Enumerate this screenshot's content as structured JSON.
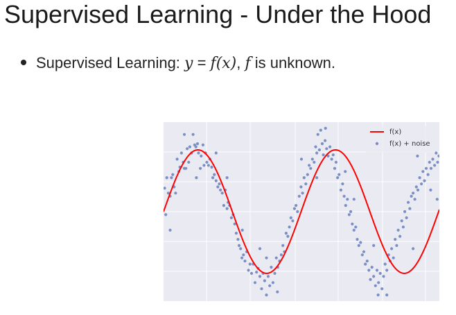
{
  "slide": {
    "title": "Supervised Learning - Under the Hood",
    "bullet": {
      "lead": "Supervised Learning: ",
      "eq_y": "y",
      "eq_mid": " = ",
      "eq_fx": "f(x)",
      "eq_comma": ", ",
      "eq_f": "f",
      "tail": " is unknown."
    }
  },
  "chart_data": {
    "type": "line",
    "function": "sin",
    "xlim": [
      0,
      12.6
    ],
    "ylim": [
      -1.45,
      1.45
    ],
    "grid": true,
    "background": "#eaeaf2",
    "legend": {
      "placement": "top-right",
      "entries": [
        {
          "label": "f(x)",
          "kind": "line",
          "color": "#ff0000"
        },
        {
          "label": "f(x) + noise",
          "kind": "scatter",
          "color": "#7a8fc4"
        }
      ]
    },
    "series": [
      {
        "values_note": "",
        "color": "#ff0000"
      }
    ],
    "scatter_points": [
      [
        0.05,
        0.38
      ],
      [
        0.1,
        -0.05
      ],
      [
        0.15,
        0.55
      ],
      [
        0.22,
        0.3
      ],
      [
        0.3,
        0.25
      ],
      [
        0.36,
        0.55
      ],
      [
        0.42,
        0.6
      ],
      [
        0.48,
        0.4
      ],
      [
        0.55,
        0.3
      ],
      [
        0.62,
        0.85
      ],
      [
        0.7,
        0.65
      ],
      [
        0.75,
        0.72
      ],
      [
        0.82,
        0.95
      ],
      [
        0.9,
        0.8
      ],
      [
        0.95,
        0.7
      ],
      [
        1.02,
        0.7
      ],
      [
        1.08,
        1.02
      ],
      [
        1.15,
        0.8
      ],
      [
        1.2,
        1.05
      ],
      [
        1.28,
        0.95
      ],
      [
        1.35,
        1.25
      ],
      [
        1.42,
        1.08
      ],
      [
        1.48,
        1.05
      ],
      [
        1.55,
        1.1
      ],
      [
        1.6,
        0.95
      ],
      [
        1.68,
        0.7
      ],
      [
        1.72,
        0.9
      ],
      [
        1.8,
        1.08
      ],
      [
        1.85,
        0.75
      ],
      [
        1.92,
        0.95
      ],
      [
        1.98,
        0.8
      ],
      [
        2.05,
        0.75
      ],
      [
        2.12,
        0.85
      ],
      [
        2.2,
        0.72
      ],
      [
        2.25,
        0.55
      ],
      [
        2.32,
        0.6
      ],
      [
        2.4,
        0.5
      ],
      [
        2.48,
        0.4
      ],
      [
        2.55,
        0.45
      ],
      [
        2.6,
        0.35
      ],
      [
        2.68,
        0.3
      ],
      [
        2.75,
        0.1
      ],
      [
        2.82,
        0.35
      ],
      [
        2.9,
        0.05
      ],
      [
        2.95,
        0.15
      ],
      [
        3.02,
        0.1
      ],
      [
        3.1,
        -0.1
      ],
      [
        3.18,
        -0.05
      ],
      [
        3.25,
        -0.2
      ],
      [
        3.32,
        -0.35
      ],
      [
        3.4,
        -0.45
      ],
      [
        3.45,
        -0.55
      ],
      [
        3.52,
        -0.6
      ],
      [
        3.58,
        -0.75
      ],
      [
        3.65,
        -0.7
      ],
      [
        3.72,
        -0.8
      ],
      [
        3.8,
        -0.65
      ],
      [
        3.88,
        -0.95
      ],
      [
        3.95,
        -0.85
      ],
      [
        4.02,
        -1.0
      ],
      [
        4.1,
        -0.85
      ],
      [
        4.18,
        -1.15
      ],
      [
        4.25,
        -0.98
      ],
      [
        4.32,
        -0.92
      ],
      [
        4.4,
        -1.05
      ],
      [
        4.48,
        -1.25
      ],
      [
        4.55,
        -1.0
      ],
      [
        4.62,
        -1.12
      ],
      [
        4.7,
        -1.35
      ],
      [
        4.78,
        -1.05
      ],
      [
        4.85,
        -1.2
      ],
      [
        4.92,
        -0.9
      ],
      [
        5.0,
        -1.15
      ],
      [
        5.08,
        -1.0
      ],
      [
        5.15,
        -0.75
      ],
      [
        5.22,
        -0.9
      ],
      [
        5.3,
        -0.8
      ],
      [
        5.38,
        -0.7
      ],
      [
        5.45,
        -0.55
      ],
      [
        5.52,
        -0.65
      ],
      [
        5.6,
        -0.35
      ],
      [
        5.68,
        -0.4
      ],
      [
        5.75,
        -0.25
      ],
      [
        5.82,
        -0.1
      ],
      [
        5.9,
        -0.15
      ],
      [
        5.98,
        0.05
      ],
      [
        6.05,
        0.1
      ],
      [
        6.12,
        0.0
      ],
      [
        6.2,
        0.25
      ],
      [
        6.28,
        0.4
      ],
      [
        6.35,
        0.3
      ],
      [
        6.42,
        0.55
      ],
      [
        6.5,
        0.45
      ],
      [
        6.58,
        0.6
      ],
      [
        6.65,
        0.75
      ],
      [
        6.72,
        0.7
      ],
      [
        6.8,
        0.85
      ],
      [
        6.88,
        0.8
      ],
      [
        6.95,
        1.05
      ],
      [
        7.0,
        0.95
      ],
      [
        7.05,
        1.25
      ],
      [
        7.12,
        1.0
      ],
      [
        7.18,
        1.32
      ],
      [
        7.25,
        1.1
      ],
      [
        7.3,
        0.92
      ],
      [
        7.38,
        1.15
      ],
      [
        7.45,
        1.02
      ],
      [
        7.52,
        0.9
      ],
      [
        7.6,
        1.05
      ],
      [
        7.68,
        0.85
      ],
      [
        7.75,
        0.92
      ],
      [
        7.82,
        0.7
      ],
      [
        7.88,
        0.8
      ],
      [
        7.95,
        0.55
      ],
      [
        8.02,
        0.6
      ],
      [
        8.1,
        0.35
      ],
      [
        8.18,
        0.45
      ],
      [
        8.25,
        0.25
      ],
      [
        8.32,
        0.1
      ],
      [
        8.4,
        0.2
      ],
      [
        8.48,
        -0.05
      ],
      [
        8.55,
        0.0
      ],
      [
        8.62,
        -0.2
      ],
      [
        8.7,
        -0.3
      ],
      [
        8.78,
        -0.25
      ],
      [
        8.85,
        -0.45
      ],
      [
        8.92,
        -0.55
      ],
      [
        9.0,
        -0.5
      ],
      [
        9.08,
        -0.7
      ],
      [
        9.15,
        -0.65
      ],
      [
        9.22,
        -0.85
      ],
      [
        9.3,
        -0.8
      ],
      [
        9.38,
        -0.95
      ],
      [
        9.45,
        -1.1
      ],
      [
        9.52,
        -0.9
      ],
      [
        9.6,
        -1.05
      ],
      [
        9.68,
        -1.2
      ],
      [
        9.75,
        -0.95
      ],
      [
        9.82,
        -1.15
      ],
      [
        9.9,
        -1.0
      ],
      [
        9.98,
        -1.25
      ],
      [
        10.05,
        -1.05
      ],
      [
        10.12,
        -0.85
      ],
      [
        10.2,
        -0.95
      ],
      [
        10.28,
        -0.7
      ],
      [
        10.35,
        -0.8
      ],
      [
        10.42,
        -0.6
      ],
      [
        10.5,
        -0.75
      ],
      [
        10.58,
        -0.45
      ],
      [
        10.65,
        -0.55
      ],
      [
        10.72,
        -0.3
      ],
      [
        10.8,
        -0.4
      ],
      [
        10.88,
        -0.15
      ],
      [
        10.95,
        -0.25
      ],
      [
        11.02,
        0.0
      ],
      [
        11.1,
        -0.1
      ],
      [
        11.18,
        0.15
      ],
      [
        11.25,
        0.05
      ],
      [
        11.32,
        0.25
      ],
      [
        11.4,
        0.3
      ],
      [
        11.48,
        0.2
      ],
      [
        11.55,
        0.4
      ],
      [
        11.62,
        0.35
      ],
      [
        11.7,
        0.55
      ],
      [
        11.78,
        0.45
      ],
      [
        11.85,
        0.65
      ],
      [
        11.92,
        0.5
      ],
      [
        12.0,
        0.7
      ],
      [
        12.08,
        0.6
      ],
      [
        12.15,
        0.8
      ],
      [
        12.22,
        0.7
      ],
      [
        12.3,
        0.85
      ],
      [
        12.38,
        0.75
      ],
      [
        12.45,
        0.95
      ],
      [
        12.52,
        0.8
      ],
      [
        12.58,
        0.9
      ],
      [
        0.3,
        -0.3
      ],
      [
        1.5,
        0.55
      ],
      [
        2.9,
        0.55
      ],
      [
        3.6,
        -0.3
      ],
      [
        4.4,
        -0.6
      ],
      [
        5.2,
        -1.3
      ],
      [
        6.3,
        0.85
      ],
      [
        7.4,
        1.35
      ],
      [
        8.3,
        0.65
      ],
      [
        9.6,
        -0.55
      ],
      [
        10.2,
        -1.35
      ],
      [
        11.4,
        -0.6
      ],
      [
        12.2,
        0.35
      ],
      [
        0.95,
        1.25
      ],
      [
        2.4,
        0.95
      ],
      [
        4.7,
        -0.75
      ],
      [
        7.0,
        0.55
      ],
      [
        8.7,
        0.2
      ],
      [
        9.8,
        -1.35
      ],
      [
        11.6,
        0.9
      ],
      [
        12.5,
        0.2
      ]
    ]
  }
}
